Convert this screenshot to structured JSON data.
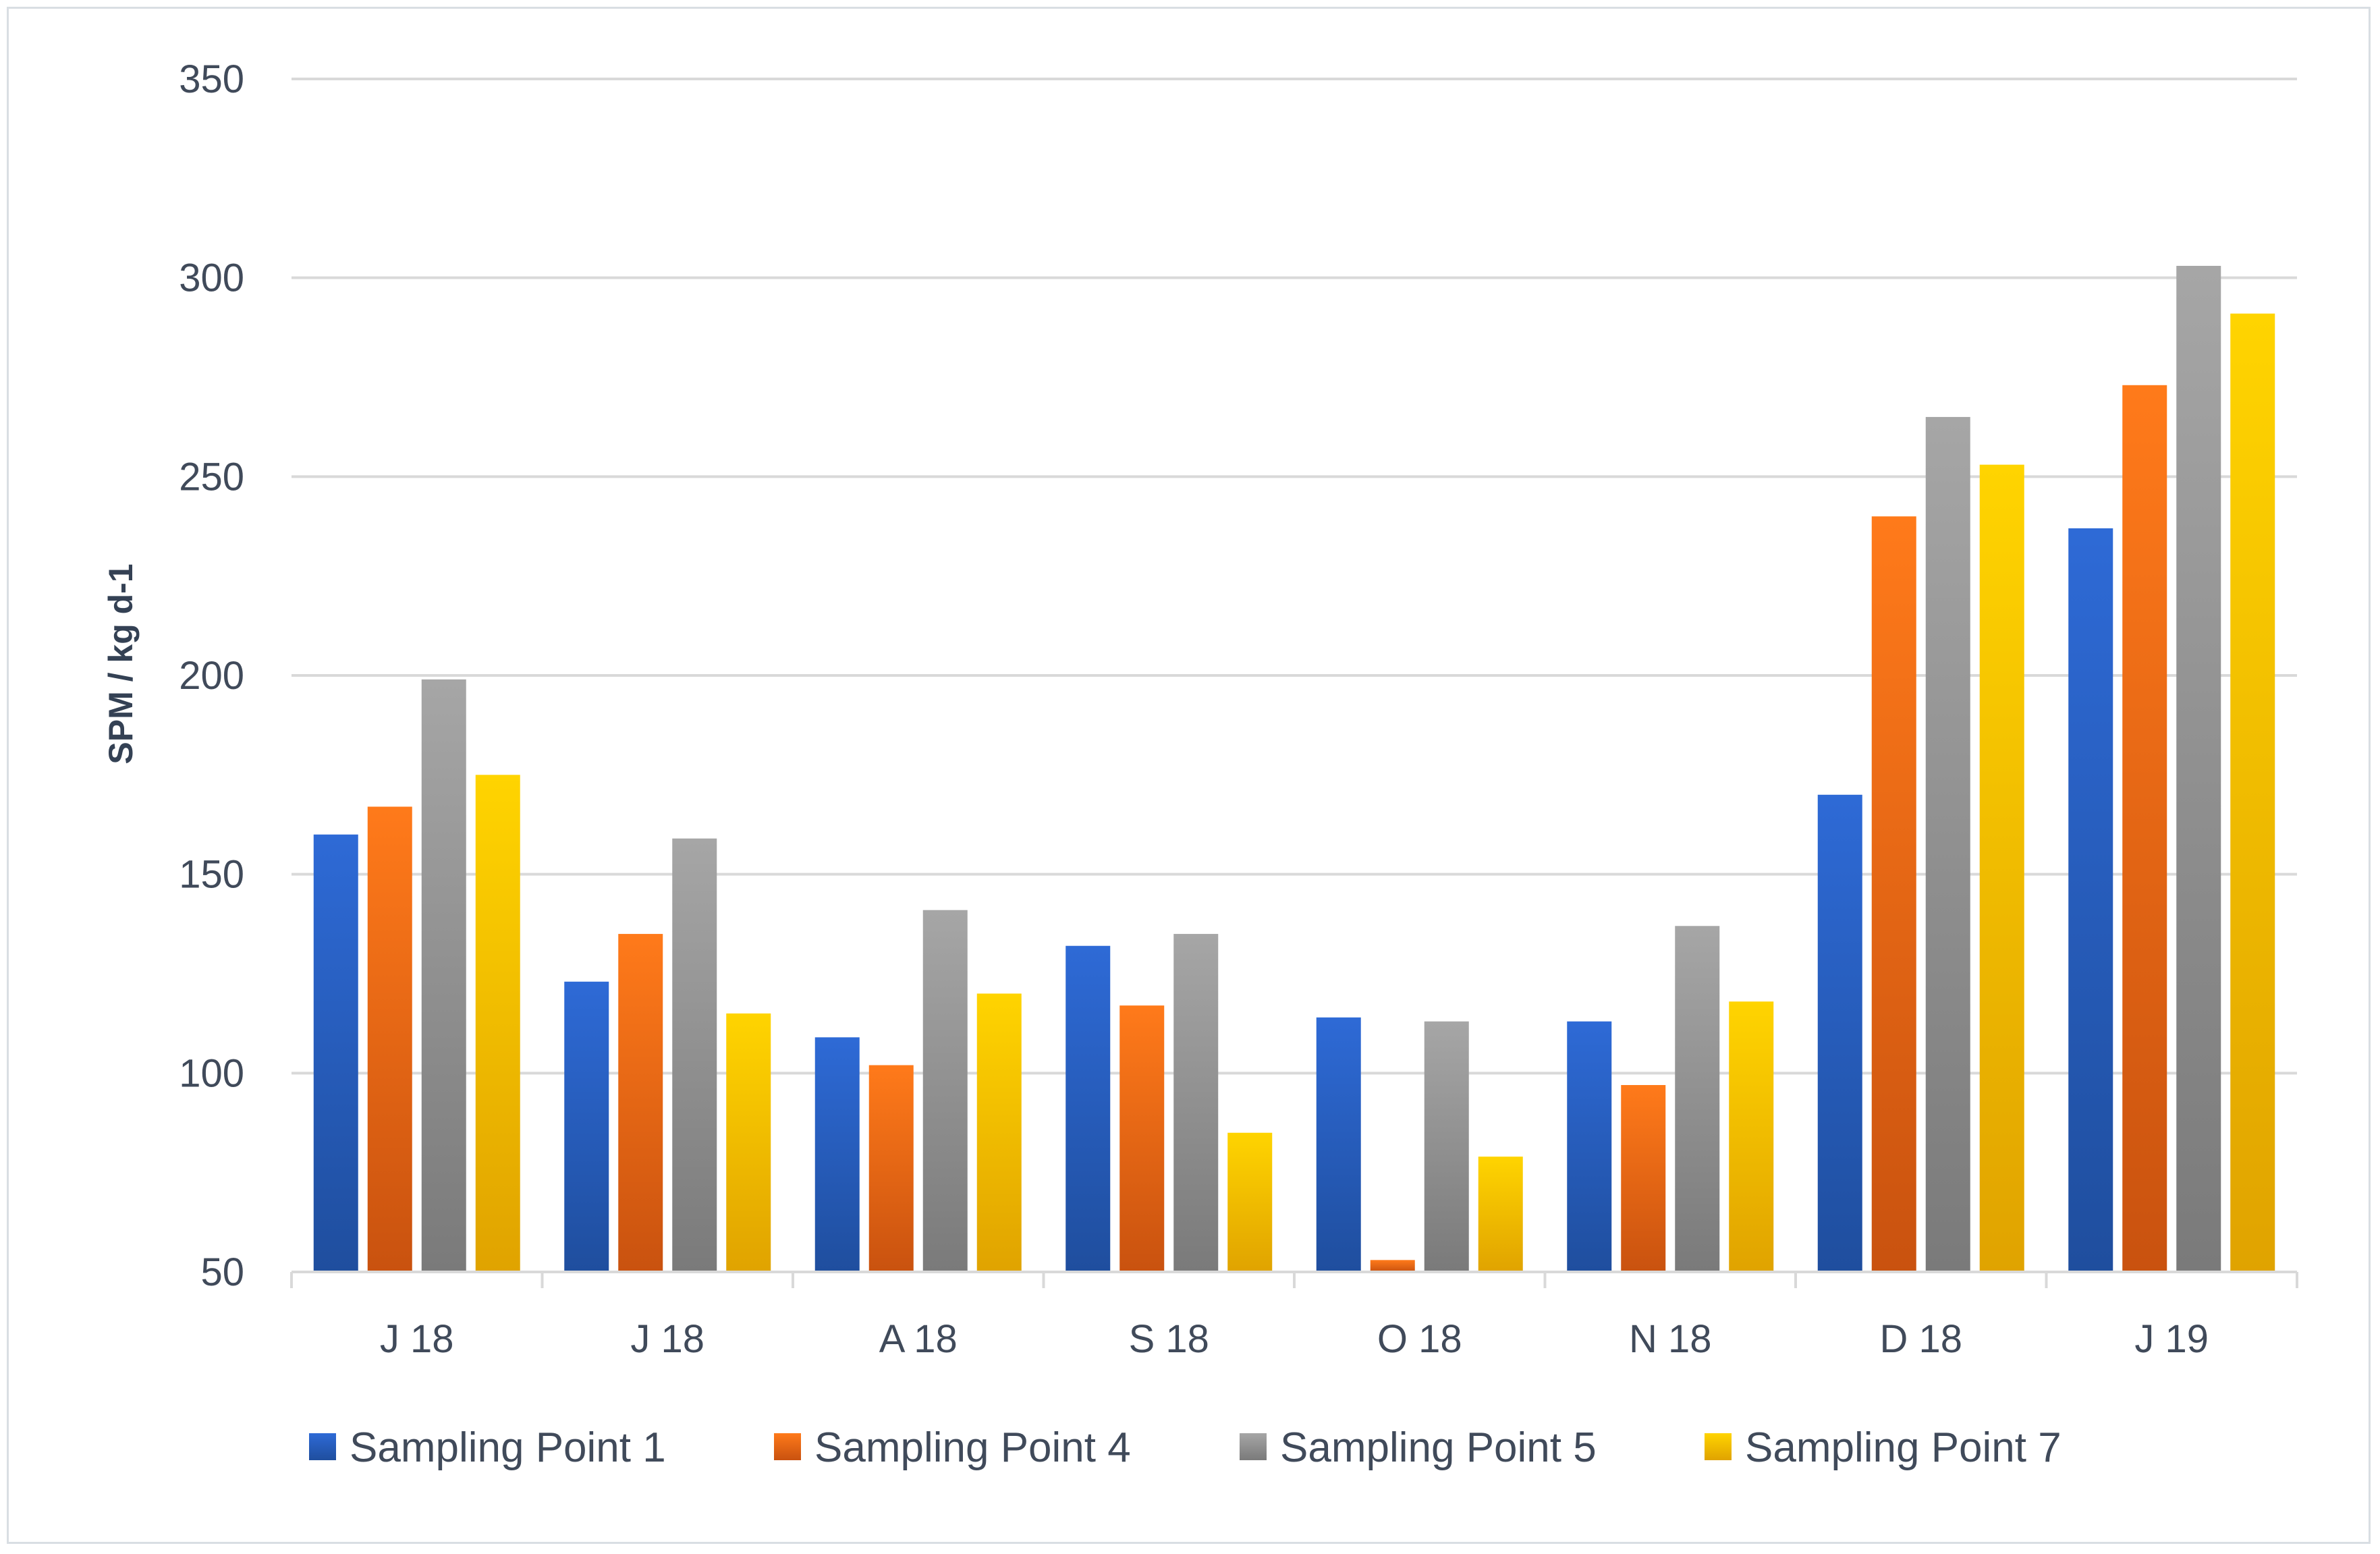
{
  "chart_data": {
    "type": "bar",
    "title": "",
    "xlabel": "",
    "ylabel": "SPM / kg d-1",
    "ylim": [
      50,
      350
    ],
    "yticks": [
      50,
      100,
      150,
      200,
      250,
      300,
      350
    ],
    "grid": true,
    "legend_position": "bottom",
    "categories": [
      "J 18",
      "J 18",
      "A 18",
      "S 18",
      "O 18",
      "N 18",
      "D 18",
      "J 19"
    ],
    "series": [
      {
        "name": "Sampling Point 1",
        "color": "#2e6ad6",
        "color_dark": "#1f4e9e",
        "values": [
          160,
          123,
          109,
          132,
          114,
          113,
          170,
          237
        ]
      },
      {
        "name": "Sampling Point 4",
        "color": "#ff7a1a",
        "color_dark": "#c9520f",
        "values": [
          167,
          135,
          102,
          117,
          53,
          97,
          240,
          273
        ]
      },
      {
        "name": "Sampling Point 5",
        "color": "#a6a6a6",
        "color_dark": "#7a7a7a",
        "values": [
          199,
          159,
          141,
          135,
          113,
          137,
          265,
          303
        ]
      },
      {
        "name": "Sampling Point 7",
        "color": "#ffd400",
        "color_dark": "#e0a300",
        "values": [
          175,
          115,
          120,
          85,
          79,
          118,
          253,
          291
        ]
      }
    ]
  }
}
